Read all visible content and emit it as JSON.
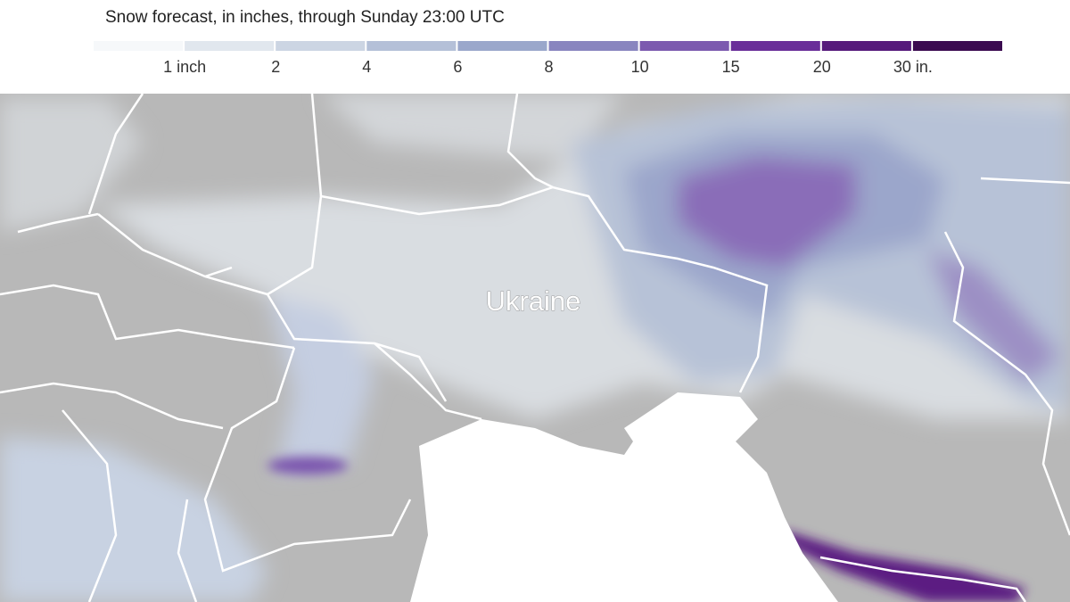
{
  "title": "Snow forecast, in inches, through Sunday 23:00 UTC",
  "legend": {
    "colors": [
      "#f6f8fa",
      "#e1e7ee",
      "#ccd5e3",
      "#b4c0d8",
      "#9aa7cb",
      "#8985bf",
      "#7c5aaf",
      "#6a2e99",
      "#561a7b",
      "#3b0a50"
    ],
    "labels": [
      "1 inch",
      "2",
      "4",
      "6",
      "8",
      "10",
      "15",
      "20",
      "30 in."
    ]
  },
  "map": {
    "label": "Ukraine"
  }
}
